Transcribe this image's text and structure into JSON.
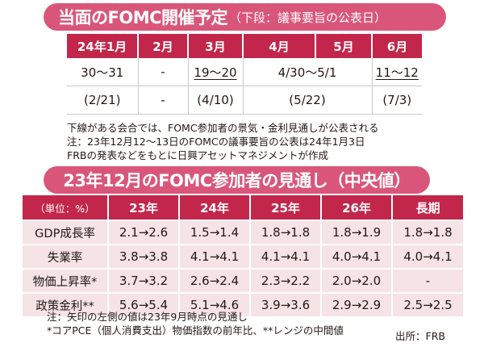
{
  "schedule": {
    "title_main": "当面のFOMC開催予定",
    "title_sub": "（下段：議事要旨の公表日）",
    "headers": [
      "24年1月",
      "2月",
      "3月",
      "4月",
      "5月",
      "6月"
    ],
    "meetings_row": [
      "30～31",
      "-",
      "19～20",
      "4/30～5/1",
      "11～12"
    ],
    "minutes_row": [
      "(2/21)",
      "-",
      "(4/10)",
      "(5/22)",
      "(7/3)"
    ],
    "notes": [
      "下線がある会合では、FOMC参加者の景気・金利見通しが公表される",
      "注：23年12月12～13日のFOMCの議事要旨の公表は24年1月3日",
      "FRBの発表などをもとに日興アセットマネジメントが作成"
    ]
  },
  "projections": {
    "title": "23年12月のFOMC参加者の見通し（中央値）",
    "unit_header": "（単位：%）",
    "col_headers": [
      "23年",
      "24年",
      "25年",
      "26年",
      "長期"
    ],
    "rows": [
      {
        "label": "GDP成長率",
        "values": [
          "2.1→2.6",
          "1.5→1.4",
          "1.8→1.8",
          "1.8→1.9",
          "1.8→1.8"
        ]
      },
      {
        "label": "失業率",
        "values": [
          "3.8→3.8",
          "4.1→4.1",
          "4.1→4.1",
          "4.0→4.1",
          "4.0→4.1"
        ]
      },
      {
        "label": "物価上昇率*",
        "values": [
          "3.7→3.2",
          "2.6→2.4",
          "2.3→2.2",
          "2.0→2.0",
          "-"
        ]
      },
      {
        "label": "政策金利**",
        "values": [
          "5.6→5.4",
          "5.1→4.6",
          "3.9→3.6",
          "2.9→2.9",
          "2.5→2.5"
        ]
      }
    ],
    "notes": [
      "注：矢印の左側の値は23年9月時点の見通し",
      "*コアPCE（個人消費支出）物価指数の前年比、**レンジの中間値"
    ],
    "source": "出所：FRB"
  }
}
